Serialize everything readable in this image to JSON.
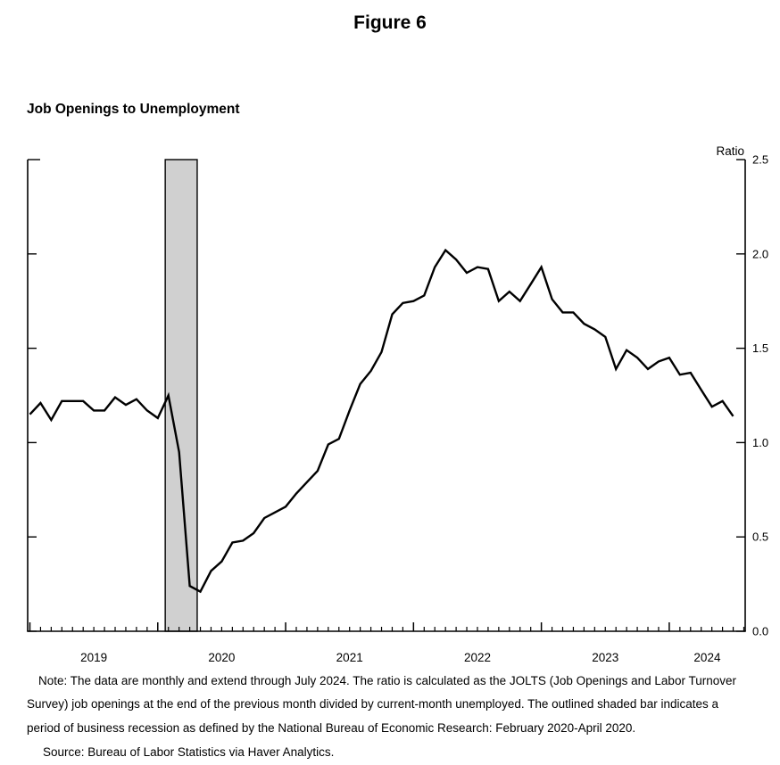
{
  "figure": {
    "title": "Figure 6"
  },
  "chart_header": {
    "title": "Job Openings to Unemployment"
  },
  "notes": {
    "note": "Note: The data are monthly and extend through July 2024. The ratio is calculated as the JOLTS (Job Openings and Labor Turnover Survey) job openings at the end of the previous month divided by current-month unemployed. The outlined shaded bar indicates a period of business recession as defined by the National Bureau of Economic Research: February 2020-April 2020.",
    "source": "Source: Bureau of Labor Statistics via Haver Analytics."
  },
  "chart_data": {
    "type": "line",
    "title": "Job Openings to Unemployment",
    "ylabel": "Ratio",
    "ylim": [
      0.0,
      2.5
    ],
    "y_tick_values": [
      0.0,
      0.5,
      1.0,
      1.5,
      2.0,
      2.5
    ],
    "y_tick_labels": [
      "0.0",
      "0.5",
      "1.0",
      "1.5",
      "2.0",
      "2.5"
    ],
    "x_year_labels": [
      "2019",
      "2020",
      "2021",
      "2022",
      "2023",
      "2024"
    ],
    "frequency": "monthly",
    "first_month": "2019-01",
    "last_month": "2024-07",
    "grid": false,
    "legend": "none",
    "line_color": "#000000",
    "series": [
      {
        "name": "Job openings to unemployment ratio",
        "values_by_year": {
          "2019": [
            1.15,
            1.21,
            1.12,
            1.22,
            1.22,
            1.22,
            1.17,
            1.17,
            1.24,
            1.2,
            1.23,
            1.17
          ],
          "2020": [
            1.13,
            1.25,
            0.95,
            0.24,
            0.21,
            0.32,
            0.37,
            0.47,
            0.48,
            0.52,
            0.6,
            0.63
          ],
          "2021": [
            0.66,
            0.73,
            0.79,
            0.85,
            0.99,
            1.02,
            1.17,
            1.31,
            1.38,
            1.48,
            1.68,
            1.74
          ],
          "2022": [
            1.75,
            1.78,
            1.93,
            2.02,
            1.97,
            1.9,
            1.93,
            1.92,
            1.75,
            1.8,
            1.75,
            1.84
          ],
          "2023": [
            1.93,
            1.76,
            1.69,
            1.69,
            1.63,
            1.6,
            1.56,
            1.39,
            1.49,
            1.45,
            1.39,
            1.43
          ],
          "2024": [
            1.45,
            1.36,
            1.37,
            1.28,
            1.19,
            1.22,
            1.14
          ]
        }
      }
    ],
    "recession_band": {
      "start_month": "2020-02",
      "end_month": "2020-04",
      "fill_color": "#d0d0d0",
      "outline_color": "#000000"
    }
  }
}
